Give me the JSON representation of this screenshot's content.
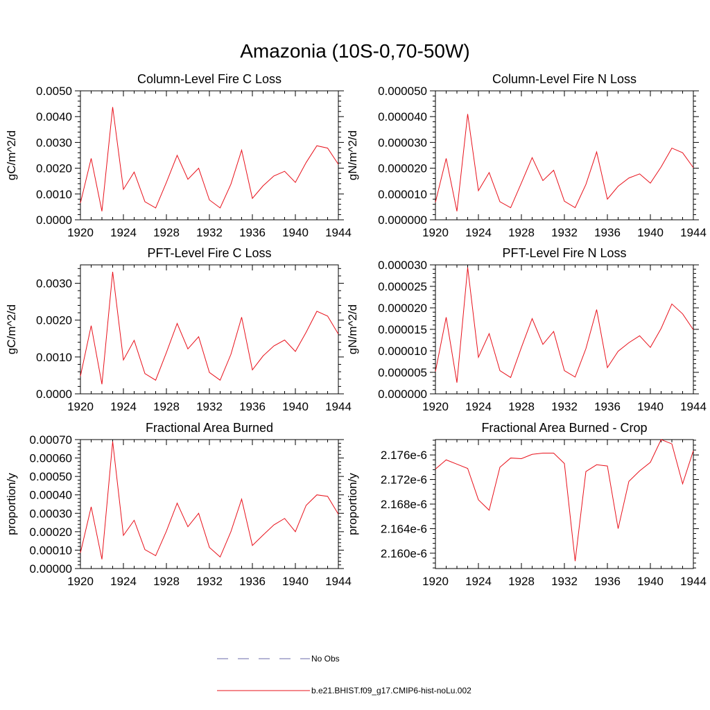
{
  "figure_title": "Amazonia (10S-0,70-50W)",
  "chart_data": [
    {
      "type": "line",
      "title": "Column-Level Fire C Loss",
      "xlabel": "",
      "ylabel": "gC/m^2/d",
      "xlim": [
        1920,
        1944
      ],
      "ylim": [
        0,
        0.005
      ],
      "x_ticks": [
        1920,
        1924,
        1928,
        1932,
        1936,
        1940,
        1944
      ],
      "y_ticks": [
        0,
        0.001,
        0.002,
        0.003,
        0.004,
        0.005
      ],
      "y_tick_labels": [
        "0.0000",
        "0.0010",
        "0.0020",
        "0.0030",
        "0.0040",
        "0.0050"
      ],
      "x": [
        1920,
        1921,
        1922,
        1923,
        1924,
        1925,
        1926,
        1927,
        1928,
        1929,
        1930,
        1931,
        1932,
        1933,
        1934,
        1935,
        1936,
        1937,
        1938,
        1939,
        1940,
        1941,
        1942,
        1943,
        1944
      ],
      "series": [
        {
          "values": [
            0.00065,
            0.00238,
            0.00033,
            0.00437,
            0.00118,
            0.00185,
            0.0007,
            0.00046,
            0.00145,
            0.0025,
            0.00157,
            0.002,
            0.00077,
            0.00046,
            0.00138,
            0.0027,
            0.00083,
            0.00132,
            0.0017,
            0.00188,
            0.00145,
            0.00222,
            0.00287,
            0.00278,
            0.00215
          ]
        }
      ]
    },
    {
      "type": "line",
      "title": "Column-Level Fire N Loss",
      "xlabel": "",
      "ylabel": "gN/m^2/d",
      "xlim": [
        1920,
        1944
      ],
      "ylim": [
        0,
        5e-05
      ],
      "x_ticks": [
        1920,
        1924,
        1928,
        1932,
        1936,
        1940,
        1944
      ],
      "y_ticks": [
        0,
        1e-05,
        2e-05,
        3e-05,
        4e-05,
        5e-05
      ],
      "y_tick_labels": [
        "0.000000",
        "0.000010",
        "0.000020",
        "0.000030",
        "0.000040",
        "0.000050"
      ],
      "x": [
        1920,
        1921,
        1922,
        1923,
        1924,
        1925,
        1926,
        1927,
        1928,
        1929,
        1930,
        1931,
        1932,
        1933,
        1934,
        1935,
        1936,
        1937,
        1938,
        1939,
        1940,
        1941,
        1942,
        1943,
        1944
      ],
      "series": [
        {
          "values": [
            6.8e-06,
            2.38e-05,
            3.3e-06,
            4.1e-05,
            1.13e-05,
            1.83e-05,
            7e-06,
            4.7e-06,
            1.43e-05,
            2.41e-05,
            1.52e-05,
            1.92e-05,
            7.2e-06,
            4.7e-06,
            1.37e-05,
            2.63e-05,
            8e-06,
            1.3e-05,
            1.62e-05,
            1.78e-05,
            1.42e-05,
            2.05e-05,
            2.78e-05,
            2.6e-05,
            2.02e-05
          ]
        }
      ]
    },
    {
      "type": "line",
      "title": "PFT-Level Fire C Loss",
      "xlabel": "",
      "ylabel": "gC/m^2/d",
      "xlim": [
        1920,
        1944
      ],
      "ylim": [
        0,
        0.0035
      ],
      "x_ticks": [
        1920,
        1924,
        1928,
        1932,
        1936,
        1940,
        1944
      ],
      "y_ticks": [
        0,
        0.001,
        0.002,
        0.003
      ],
      "y_tick_labels": [
        "0.0000",
        "0.0010",
        "0.0020",
        "0.0030"
      ],
      "x": [
        1920,
        1921,
        1922,
        1923,
        1924,
        1925,
        1926,
        1927,
        1928,
        1929,
        1930,
        1931,
        1932,
        1933,
        1934,
        1935,
        1936,
        1937,
        1938,
        1939,
        1940,
        1941,
        1942,
        1943,
        1944
      ],
      "series": [
        {
          "values": [
            0.00048,
            0.00185,
            0.00026,
            0.00331,
            0.00092,
            0.00145,
            0.00055,
            0.00037,
            0.00112,
            0.00191,
            0.00122,
            0.00155,
            0.00058,
            0.00037,
            0.00107,
            0.00208,
            0.00065,
            0.00103,
            0.0013,
            0.00146,
            0.00115,
            0.00167,
            0.00224,
            0.00211,
            0.00162
          ]
        }
      ]
    },
    {
      "type": "line",
      "title": "PFT-Level Fire N Loss",
      "xlabel": "",
      "ylabel": "gN/m^2/d",
      "xlim": [
        1920,
        1944
      ],
      "ylim": [
        0,
        3e-05
      ],
      "x_ticks": [
        1920,
        1924,
        1928,
        1932,
        1936,
        1940,
        1944
      ],
      "y_ticks": [
        0,
        5e-06,
        1e-05,
        1.5e-05,
        2e-05,
        2.5e-05,
        3e-05
      ],
      "y_tick_labels": [
        "0.000000",
        "0.000005",
        "0.000010",
        "0.000015",
        "0.000020",
        "0.000025",
        "0.000030"
      ],
      "x": [
        1920,
        1921,
        1922,
        1923,
        1924,
        1925,
        1926,
        1927,
        1928,
        1929,
        1930,
        1931,
        1932,
        1933,
        1934,
        1935,
        1936,
        1937,
        1938,
        1939,
        1940,
        1941,
        1942,
        1943,
        1944
      ],
      "series": [
        {
          "values": [
            5.2e-06,
            1.78e-05,
            2.6e-06,
            2.94e-05,
            8.5e-06,
            1.4e-05,
            5.4e-06,
            3.8e-06,
            1.08e-05,
            1.75e-05,
            1.15e-05,
            1.45e-05,
            5.4e-06,
            3.9e-06,
            1.05e-05,
            1.96e-05,
            6.1e-06,
            9.9e-06,
            1.19e-05,
            1.35e-05,
            1.08e-05,
            1.52e-05,
            2.09e-05,
            1.86e-05,
            1.49e-05
          ]
        }
      ]
    },
    {
      "type": "line",
      "title": "Fractional Area Burned",
      "xlabel": "",
      "ylabel": "proportion/y",
      "xlim": [
        1920,
        1944
      ],
      "ylim": [
        0,
        0.0007
      ],
      "x_ticks": [
        1920,
        1924,
        1928,
        1932,
        1936,
        1940,
        1944
      ],
      "y_ticks": [
        0,
        0.0001,
        0.0002,
        0.0003,
        0.0004,
        0.0005,
        0.0006,
        0.0007
      ],
      "y_tick_labels": [
        "0.00000",
        "0.00010",
        "0.00020",
        "0.00030",
        "0.00040",
        "0.00050",
        "0.00060",
        "0.00070"
      ],
      "x": [
        1920,
        1921,
        1922,
        1923,
        1924,
        1925,
        1926,
        1927,
        1928,
        1929,
        1930,
        1931,
        1932,
        1933,
        1934,
        1935,
        1936,
        1937,
        1938,
        1939,
        1940,
        1941,
        1942,
        1943,
        1944
      ],
      "series": [
        {
          "values": [
            8.5e-05,
            0.000335,
            5e-05,
            0.00069,
            0.00018,
            0.000262,
            0.000103,
            7e-05,
            0.000203,
            0.000355,
            0.000227,
            0.0003,
            0.000115,
            6.3e-05,
            0.0002,
            0.000377,
            0.000125,
            0.000182,
            0.000237,
            0.000272,
            0.0002,
            0.000343,
            0.0004,
            0.000392,
            0.000295
          ]
        }
      ]
    },
    {
      "type": "line",
      "title": "Fractional Area Burned - Crop",
      "xlabel": "",
      "ylabel": "proportion/y",
      "xlim": [
        1920,
        1944
      ],
      "ylim": [
        2.1575e-06,
        2.1785e-06
      ],
      "x_ticks": [
        1920,
        1924,
        1928,
        1932,
        1936,
        1940,
        1944
      ],
      "y_ticks": [
        2.16e-06,
        2.164e-06,
        2.168e-06,
        2.172e-06,
        2.176e-06
      ],
      "y_tick_labels": [
        "2.160e-6",
        "2.164e-6",
        "2.168e-6",
        "2.172e-6",
        "2.176e-6"
      ],
      "x": [
        1920,
        1921,
        1922,
        1923,
        1924,
        1925,
        1926,
        1927,
        1928,
        1929,
        1930,
        1931,
        1932,
        1933,
        1934,
        1935,
        1936,
        1937,
        1938,
        1939,
        1940,
        1941,
        1942,
        1943,
        1944
      ],
      "series": [
        {
          "values": [
            2.1737e-06,
            2.1752e-06,
            2.1745e-06,
            2.1738e-06,
            2.1687e-06,
            2.167e-06,
            2.174e-06,
            2.1755e-06,
            2.1754e-06,
            2.1761e-06,
            2.1763e-06,
            2.1763e-06,
            2.1746e-06,
            2.1587e-06,
            2.1733e-06,
            2.1744e-06,
            2.1742e-06,
            2.164e-06,
            2.1717e-06,
            2.1734e-06,
            2.1748e-06,
            2.1785e-06,
            2.1778e-06,
            2.1713e-06,
            2.1767e-06
          ]
        }
      ]
    }
  ],
  "legend": {
    "entries": [
      {
        "label": "No Obs",
        "color": "#6a6aa8",
        "dash": true
      },
      {
        "label": "b.e21.BHIST.f09_g17.CMIP6-hist-noLu.002",
        "color": "#e8101a",
        "dash": false
      }
    ]
  }
}
